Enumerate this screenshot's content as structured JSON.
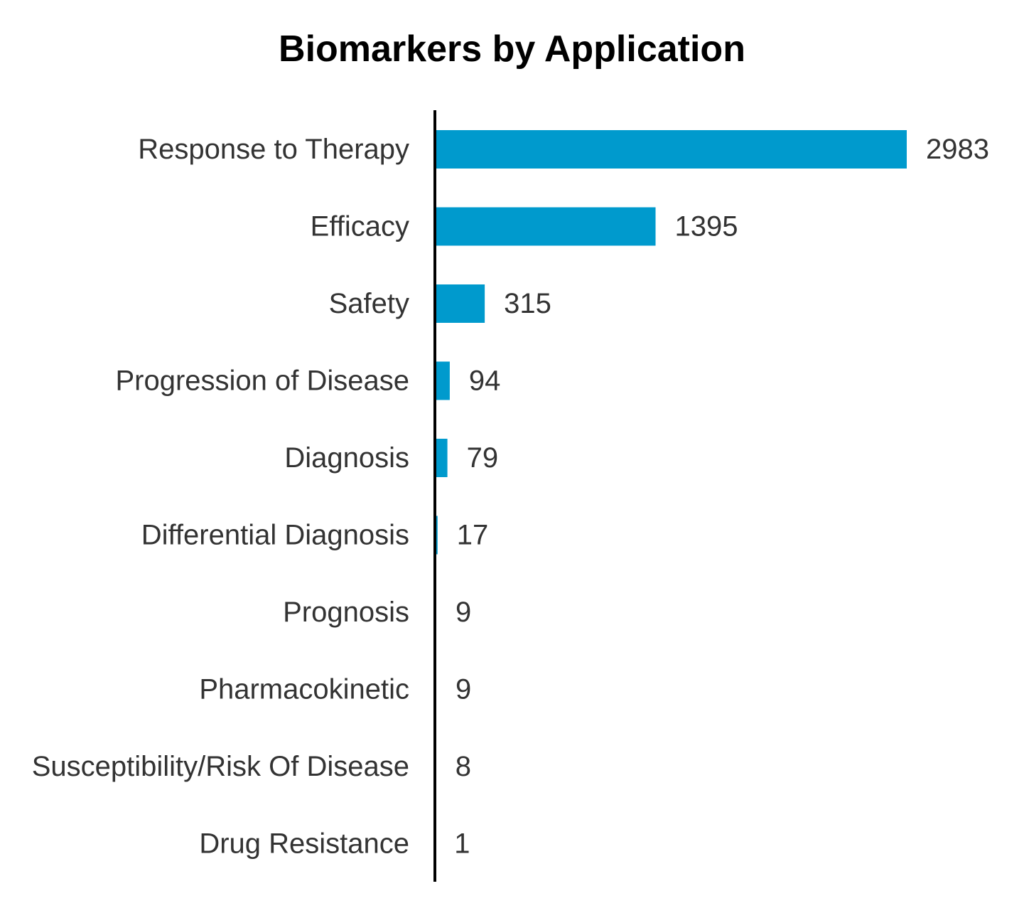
{
  "chart_data": {
    "type": "bar",
    "orientation": "horizontal",
    "title": "Biomarkers by Application",
    "xlabel": "",
    "ylabel": "",
    "categories": [
      "Response to Therapy",
      "Efficacy",
      "Safety",
      "Progression of Disease",
      "Diagnosis",
      "Differential Diagnosis",
      "Prognosis",
      "Pharmacokinetic",
      "Susceptibility/Risk Of Disease",
      "Drug Resistance"
    ],
    "values": [
      2983,
      1395,
      315,
      94,
      79,
      17,
      9,
      9,
      8,
      1
    ],
    "data_labels": [
      "2983",
      "1395",
      "315",
      "94",
      "79",
      "17",
      "9",
      "9",
      "8",
      "1"
    ],
    "xlim": [
      0,
      2983
    ],
    "grid": false,
    "legend": "none",
    "bar_color": "#009ACD",
    "axis_color": "#000000",
    "label_color": "#333333"
  }
}
